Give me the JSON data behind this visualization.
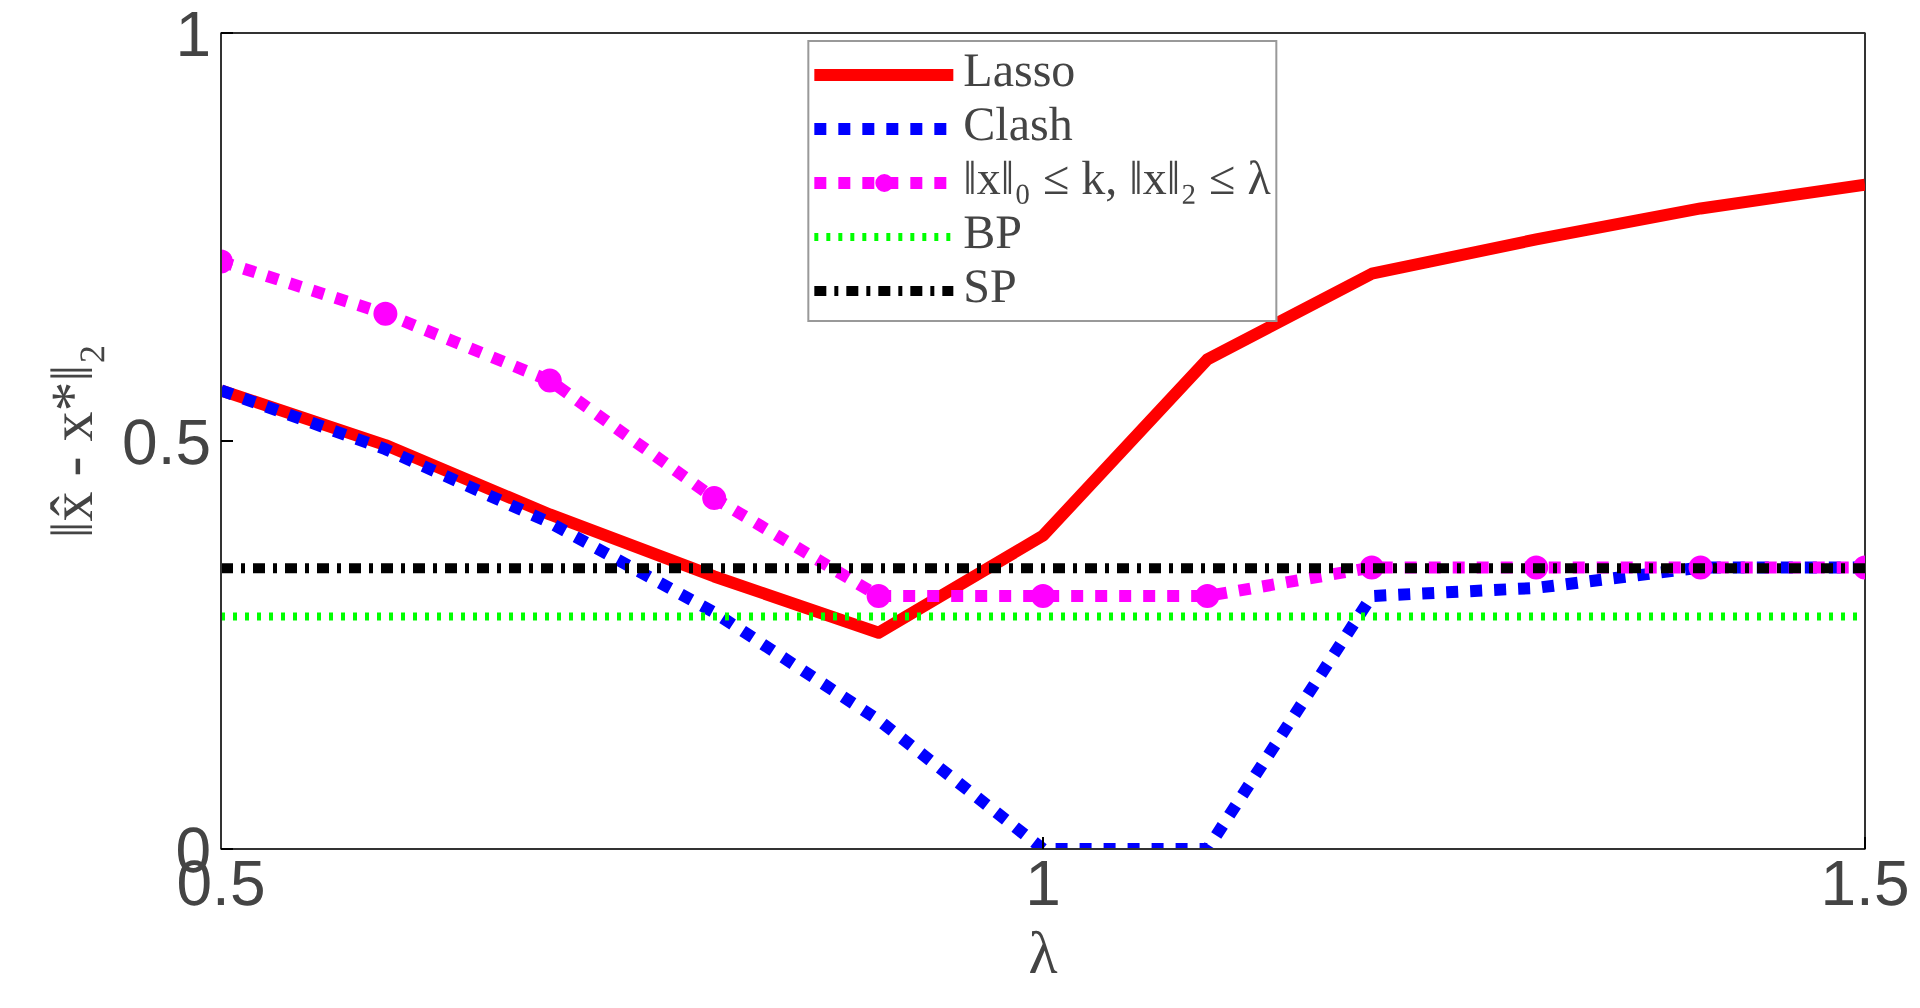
{
  "chart_data": {
    "type": "line",
    "xlabel": "λ",
    "ylabel": "‖x̂ - x*‖₂",
    "x": [
      0.5,
      0.6,
      0.7,
      0.8,
      0.9,
      1.0,
      1.1,
      1.2,
      1.3,
      1.4,
      1.5
    ],
    "xlim": [
      0.5,
      1.5
    ],
    "xticks": [
      0.5,
      1,
      1.5
    ],
    "ylim": [
      0,
      1
    ],
    "yticks": [
      0,
      0.5,
      1
    ],
    "grid": false,
    "legend": "top",
    "series": [
      {
        "name": "Lasso",
        "color": "#ff0000",
        "line_style": "solid",
        "marker": "none",
        "values": [
          0.562,
          0.495,
          0.41,
          0.334,
          0.265,
          0.384,
          0.6,
          0.705,
          0.747,
          0.785,
          0.814
        ]
      },
      {
        "name": "Clash",
        "color": "#0000ff",
        "line_style": "dashed",
        "marker": "none",
        "values": [
          0.562,
          0.49,
          0.4,
          0.29,
          0.158,
          0.0,
          0.0,
          0.31,
          0.32,
          0.345,
          0.345
        ]
      },
      {
        "name": "‖x‖₀ ≤ k, ‖x‖₂ ≤ λ",
        "color": "#ff00ff",
        "line_style": "dashed",
        "marker": "circle",
        "values": [
          0.72,
          0.656,
          0.574,
          0.43,
          0.31,
          0.31,
          0.31,
          0.345,
          0.345,
          0.345,
          0.345
        ]
      },
      {
        "name": "BP",
        "color": "#00ff00",
        "line_style": "dotted",
        "marker": "none",
        "values": [
          0.285,
          0.285,
          0.285,
          0.285,
          0.285,
          0.285,
          0.285,
          0.285,
          0.285,
          0.285,
          0.285
        ]
      },
      {
        "name": "SP",
        "color": "#000000",
        "line_style": "dashdot",
        "marker": "none",
        "values": [
          0.344,
          0.344,
          0.344,
          0.344,
          0.344,
          0.344,
          0.344,
          0.344,
          0.344,
          0.344,
          0.344
        ]
      }
    ]
  }
}
